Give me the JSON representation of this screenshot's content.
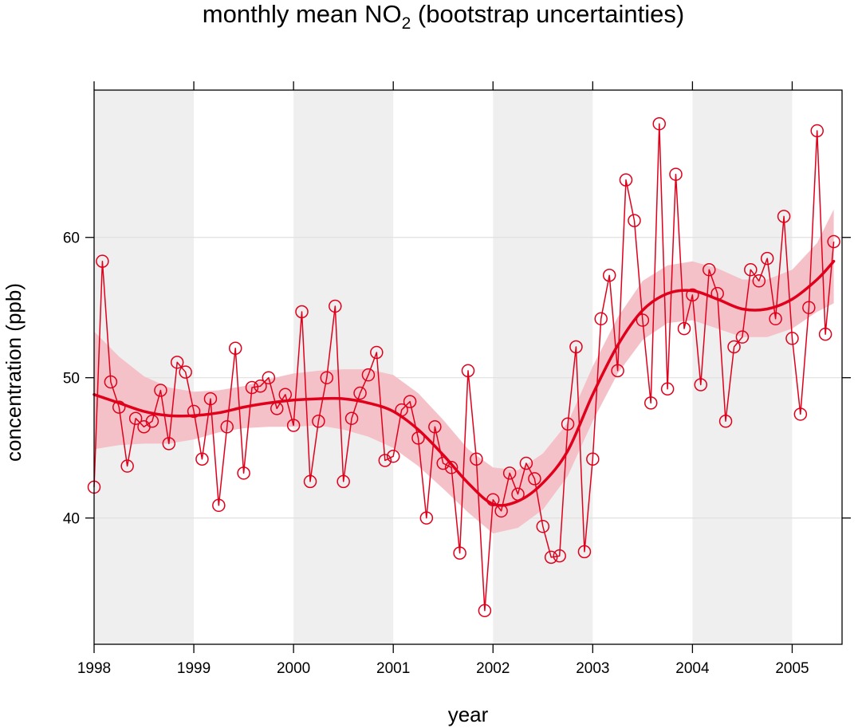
{
  "chart_data": {
    "type": "line",
    "title": {
      "prefix": "monthly mean NO",
      "subscript": "2",
      "suffix": " (bootstrap uncertainties)"
    },
    "xlabel": "year",
    "ylabel": "concentration (ppb)",
    "xlim": [
      1998,
      2005.5
    ],
    "ylim": [
      31,
      70.5
    ],
    "x_ticks": [
      1998,
      1999,
      2000,
      2001,
      2002,
      2003,
      2004,
      2005
    ],
    "x_tick_labels": [
      "1998",
      "1999",
      "2000",
      "2001",
      "2002",
      "2003",
      "2004",
      "2005"
    ],
    "y_ticks": [
      40,
      50,
      60
    ],
    "y_tick_labels": [
      "40",
      "50",
      "60"
    ],
    "grid": true,
    "shaded_year_bands": [
      [
        1998,
        1999
      ],
      [
        2000,
        2001
      ],
      [
        2002,
        2003
      ],
      [
        2004,
        2005
      ]
    ],
    "colors": {
      "series": "#E0001B",
      "band": "#F5C1C8",
      "shade": "#EFEFEF",
      "grid": "#E0E0E0",
      "axis": "#000000"
    },
    "series": [
      {
        "kind": "monthly_mean",
        "x": [
          1998.0,
          1998.083,
          1998.167,
          1998.25,
          1998.333,
          1998.417,
          1998.5,
          1998.583,
          1998.667,
          1998.75,
          1998.833,
          1998.917,
          1999.0,
          1999.083,
          1999.167,
          1999.25,
          1999.333,
          1999.417,
          1999.5,
          1999.583,
          1999.667,
          1999.75,
          1999.833,
          1999.917,
          2000.0,
          2000.083,
          2000.167,
          2000.25,
          2000.333,
          2000.417,
          2000.5,
          2000.583,
          2000.667,
          2000.75,
          2000.833,
          2000.917,
          2001.0,
          2001.083,
          2001.167,
          2001.25,
          2001.333,
          2001.417,
          2001.5,
          2001.583,
          2001.667,
          2001.75,
          2001.833,
          2001.917,
          2002.0,
          2002.083,
          2002.167,
          2002.25,
          2002.333,
          2002.417,
          2002.5,
          2002.583,
          2002.667,
          2002.75,
          2002.833,
          2002.917,
          2003.0,
          2003.083,
          2003.167,
          2003.25,
          2003.333,
          2003.417,
          2003.5,
          2003.583,
          2003.667,
          2003.75,
          2003.833,
          2003.917,
          2004.0,
          2004.083,
          2004.167,
          2004.25,
          2004.333,
          2004.417,
          2004.5,
          2004.583,
          2004.667,
          2004.75,
          2004.833,
          2004.917,
          2005.0,
          2005.083,
          2005.167,
          2005.25,
          2005.333,
          2005.417
        ],
        "y": [
          42.2,
          58.3,
          49.7,
          47.9,
          43.7,
          47.1,
          46.5,
          46.9,
          49.1,
          45.3,
          51.1,
          50.4,
          47.6,
          44.2,
          48.5,
          40.9,
          46.5,
          52.1,
          43.2,
          49.3,
          49.4,
          50.0,
          47.8,
          48.8,
          46.6,
          54.7,
          42.6,
          46.9,
          50.0,
          55.1,
          42.6,
          47.1,
          48.9,
          50.2,
          51.8,
          44.1,
          44.4,
          47.7,
          48.3,
          45.7,
          40.0,
          46.5,
          43.9,
          43.6,
          37.5,
          50.5,
          44.2,
          33.4,
          41.3,
          40.5,
          43.2,
          41.7,
          43.9,
          42.8,
          39.4,
          37.2,
          37.3,
          46.7,
          52.2,
          37.6,
          44.2,
          54.2,
          57.3,
          50.5,
          64.1,
          61.2,
          54.1,
          48.2,
          68.1,
          49.2,
          64.5,
          53.5,
          55.9,
          49.5,
          57.7,
          56.0,
          46.9,
          52.2,
          52.9,
          57.7,
          56.9,
          58.5,
          54.2,
          61.5,
          52.8,
          47.4,
          55.0,
          67.6,
          53.1,
          59.7
        ]
      },
      {
        "kind": "smooth_trend",
        "x": [
          1998.0,
          1998.25,
          1998.5,
          1998.75,
          1999.0,
          1999.25,
          1999.5,
          1999.75,
          2000.0,
          2000.25,
          2000.5,
          2000.75,
          2001.0,
          2001.25,
          2001.5,
          2001.75,
          2002.0,
          2002.25,
          2002.5,
          2002.75,
          2003.0,
          2003.25,
          2003.5,
          2003.75,
          2004.0,
          2004.25,
          2004.5,
          2004.75,
          2005.0,
          2005.25,
          2005.417
        ],
        "y": [
          48.8,
          48.2,
          47.6,
          47.3,
          47.3,
          47.5,
          47.9,
          48.2,
          48.4,
          48.5,
          48.5,
          48.2,
          47.6,
          46.3,
          44.5,
          42.5,
          41.0,
          41.2,
          42.5,
          44.8,
          48.8,
          52.3,
          54.8,
          56.0,
          56.2,
          55.6,
          54.9,
          54.9,
          55.6,
          57.0,
          58.3
        ],
        "lower": [
          44.9,
          45.2,
          45.3,
          45.3,
          45.6,
          46.1,
          46.4,
          46.5,
          46.5,
          46.6,
          46.3,
          45.8,
          45.0,
          43.7,
          42.1,
          40.4,
          38.9,
          39.3,
          40.6,
          43.0,
          46.9,
          50.3,
          52.7,
          53.9,
          54.1,
          53.5,
          52.9,
          52.9,
          53.5,
          54.7,
          55.3
        ],
        "upper": [
          53.3,
          51.5,
          50.1,
          49.3,
          49.0,
          49.1,
          49.4,
          49.9,
          50.3,
          50.5,
          50.6,
          50.6,
          50.2,
          48.9,
          47.0,
          44.9,
          43.6,
          43.4,
          44.6,
          46.8,
          50.8,
          54.3,
          56.9,
          58.0,
          58.3,
          57.8,
          57.0,
          57.0,
          57.7,
          59.6,
          62.0
        ]
      }
    ]
  }
}
